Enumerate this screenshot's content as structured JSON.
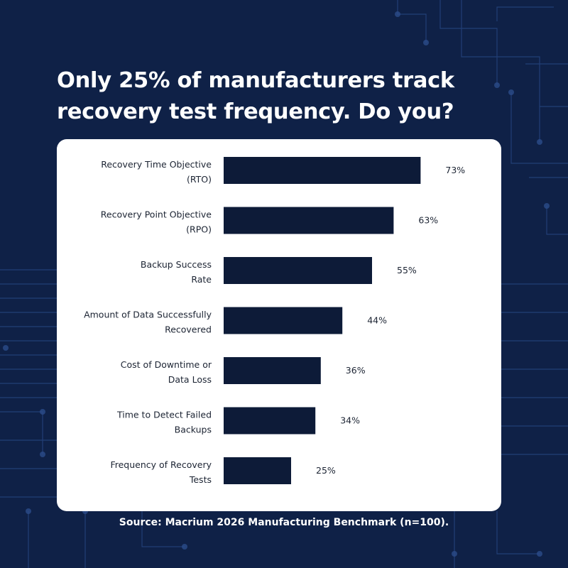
{
  "header": {
    "title_line1": "Only 25% of manufacturers track",
    "title_line2": "recovery test frequency. Do you?"
  },
  "footer": {
    "source": "Source: Macrium 2026 Manufacturing Benchmark (n=100)."
  },
  "colors": {
    "background": "#0f2147",
    "bar": "#0d1b38",
    "card": "#ffffff",
    "label_text": "#1c2433",
    "circuit": "#2b4c8a"
  },
  "chart_data": {
    "type": "bar",
    "orientation": "horizontal",
    "categories": [
      [
        "Recovery Time Objective",
        "(RTO)"
      ],
      [
        "Recovery Point Objective",
        "(RPO)"
      ],
      [
        "Backup Success",
        "Rate"
      ],
      [
        "Amount of Data Successfully",
        "Recovered"
      ],
      [
        "Cost of Downtime or",
        "Data Loss"
      ],
      [
        "Time to Detect Failed",
        "Backups"
      ],
      [
        "Frequency of Recovery",
        "Tests"
      ]
    ],
    "values": [
      73,
      63,
      55,
      44,
      36,
      34,
      25
    ],
    "data_labels": [
      "73%",
      "63%",
      "55%",
      "44%",
      "36%",
      "34%",
      "25%"
    ],
    "xlim": [
      0,
      100
    ],
    "grid": false,
    "legend": "none"
  }
}
